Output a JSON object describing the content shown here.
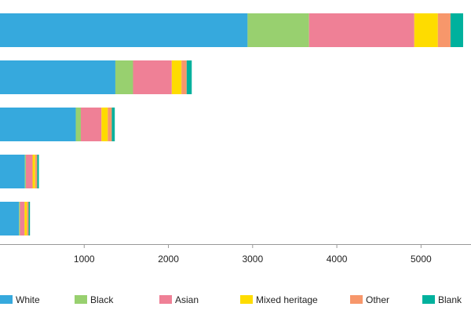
{
  "chart_data": {
    "type": "bar",
    "orientation": "horizontal",
    "stacked": true,
    "title": "",
    "xlabel": "",
    "ylabel": "",
    "categories": [
      "",
      "",
      "",
      "",
      ""
    ],
    "xlim": [
      0,
      5500
    ],
    "xticks": [
      1000,
      2000,
      3000,
      4000,
      5000
    ],
    "xtick_labels": [
      "1000",
      "2000",
      "3000",
      "4000",
      "5000"
    ],
    "grid": false,
    "legend_position": "bottom",
    "series": [
      {
        "name": "White",
        "color": "#36a9dd",
        "values": [
          2940,
          1370,
          900,
          295,
          225
        ]
      },
      {
        "name": "Black",
        "color": "#98d06f",
        "values": [
          730,
          210,
          60,
          12,
          12
        ]
      },
      {
        "name": "Asian",
        "color": "#ef8096",
        "values": [
          1250,
          460,
          245,
          80,
          55
        ]
      },
      {
        "name": "Mixed heritage",
        "color": "#fedc00",
        "values": [
          280,
          115,
          75,
          30,
          28
        ]
      },
      {
        "name": "Other",
        "color": "#f7976b",
        "values": [
          150,
          62,
          48,
          25,
          20
        ]
      },
      {
        "name": "Blank",
        "color": "#00b19d",
        "values": [
          150,
          60,
          35,
          20,
          16
        ]
      }
    ]
  }
}
